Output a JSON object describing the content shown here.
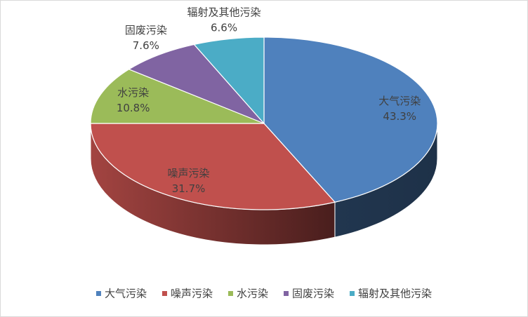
{
  "chart_data": {
    "type": "pie3d",
    "categories": [
      "大气污染",
      "噪声污染",
      "水污染",
      "固废污染",
      "辐射及其他污染"
    ],
    "values": [
      43.3,
      31.7,
      10.8,
      7.6,
      6.6
    ],
    "value_labels": [
      "43.3%",
      "31.7%",
      "10.8%",
      "7.6%",
      "6.6%"
    ],
    "colors": [
      "#4f81bd",
      "#c0504d",
      "#9bbb59",
      "#8064a2",
      "#4bacc6"
    ],
    "legend": "bottom"
  }
}
